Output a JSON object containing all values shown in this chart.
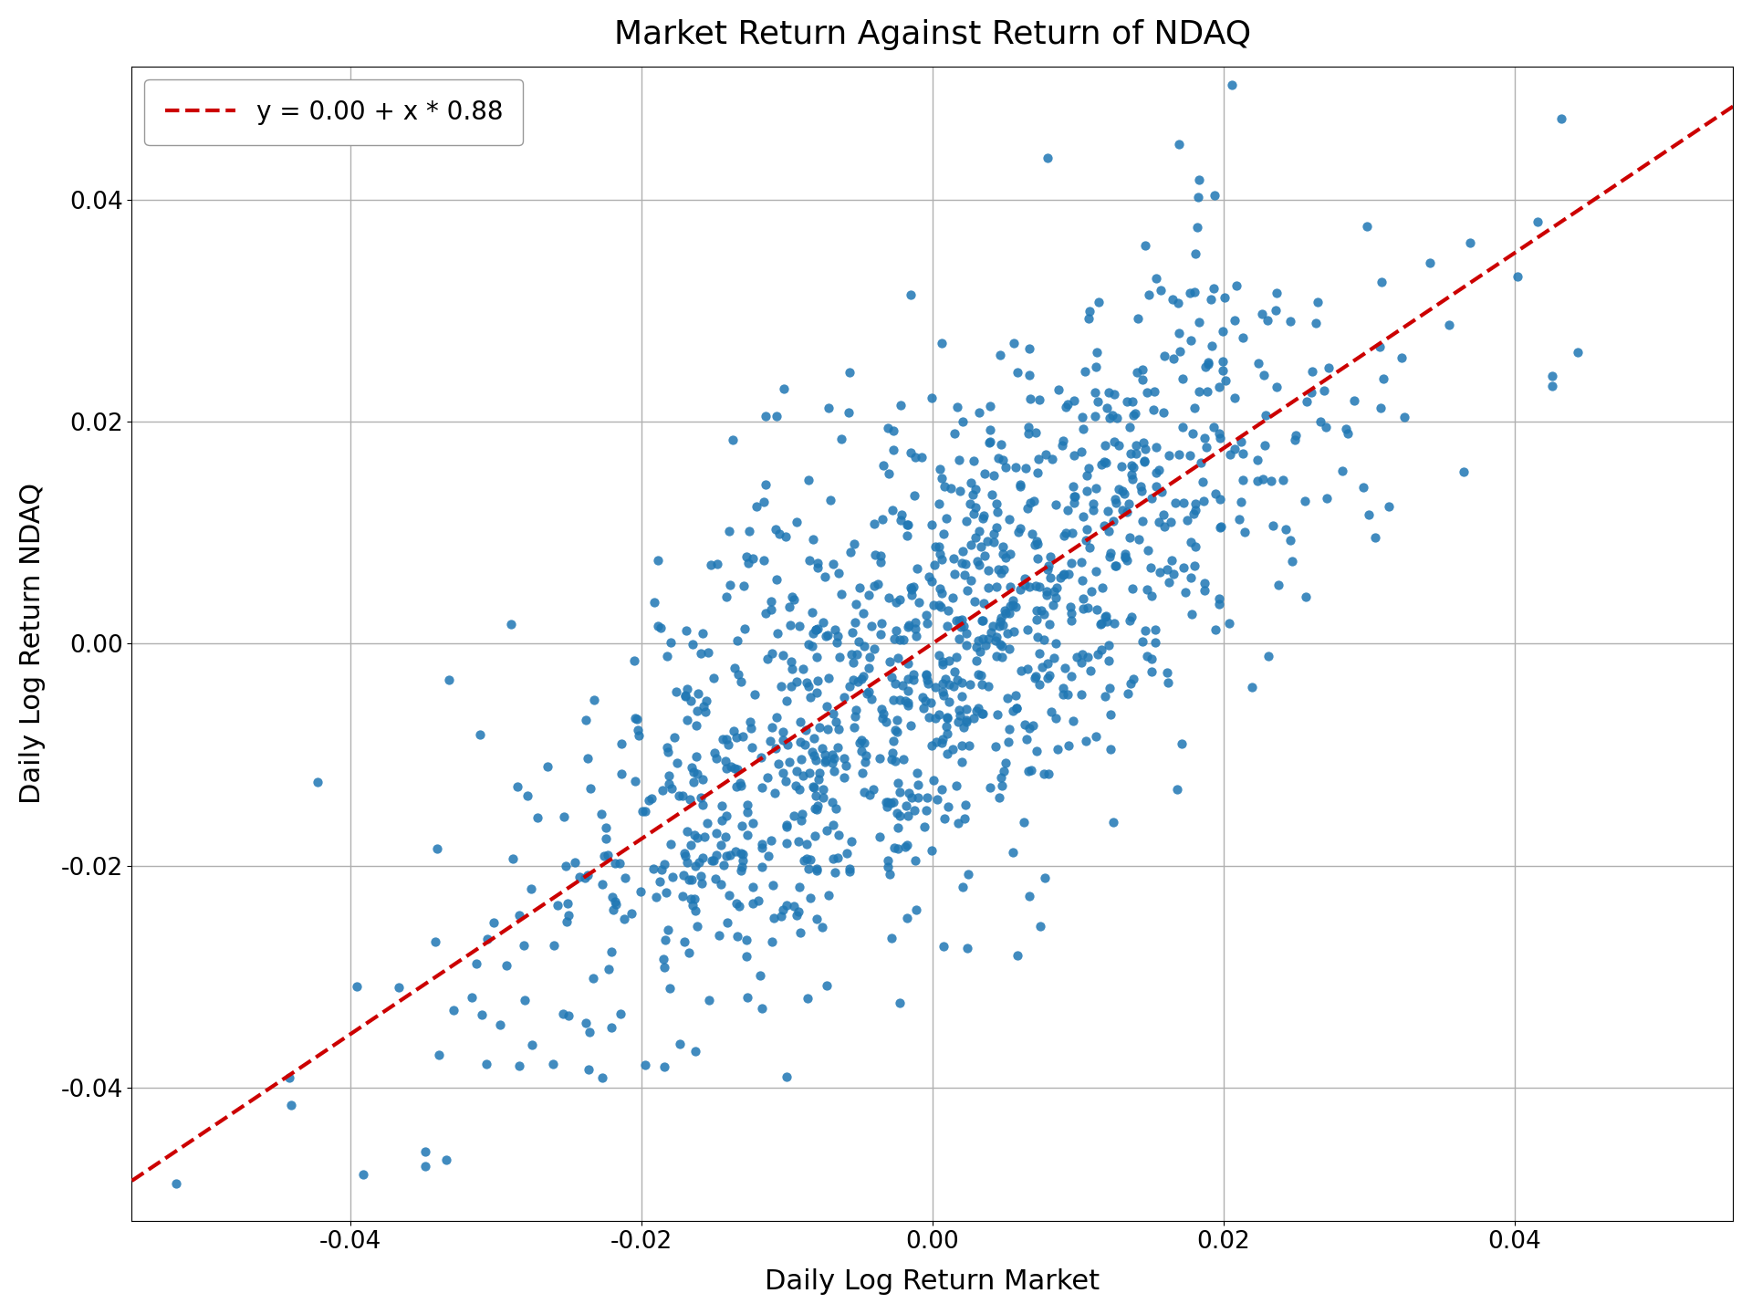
{
  "title": "Market Return Against Return of NDAQ",
  "xlabel": "Daily Log Return Market",
  "ylabel": "Daily Log Return NDAQ",
  "legend_label": "y = 0.00 + x * 0.88",
  "intercept": 0.0,
  "slope": 0.88,
  "xlim": [
    -0.055,
    0.055
  ],
  "ylim": [
    -0.052,
    0.052
  ],
  "scatter_color": "#1f77b4",
  "line_color": "#cc0000",
  "marker_size": 55,
  "alpha": 0.85,
  "seed": 12,
  "n_points": 1200,
  "market_std": 0.014,
  "residual_std": 0.011,
  "title_fontsize": 26,
  "label_fontsize": 22,
  "tick_fontsize": 19,
  "legend_fontsize": 20,
  "background_color": "#ffffff",
  "grid_color": "#b0b0b0",
  "xticks": [
    -0.04,
    -0.02,
    0.0,
    0.02,
    0.04
  ],
  "yticks": [
    -0.04,
    -0.02,
    0.0,
    0.02,
    0.04
  ]
}
